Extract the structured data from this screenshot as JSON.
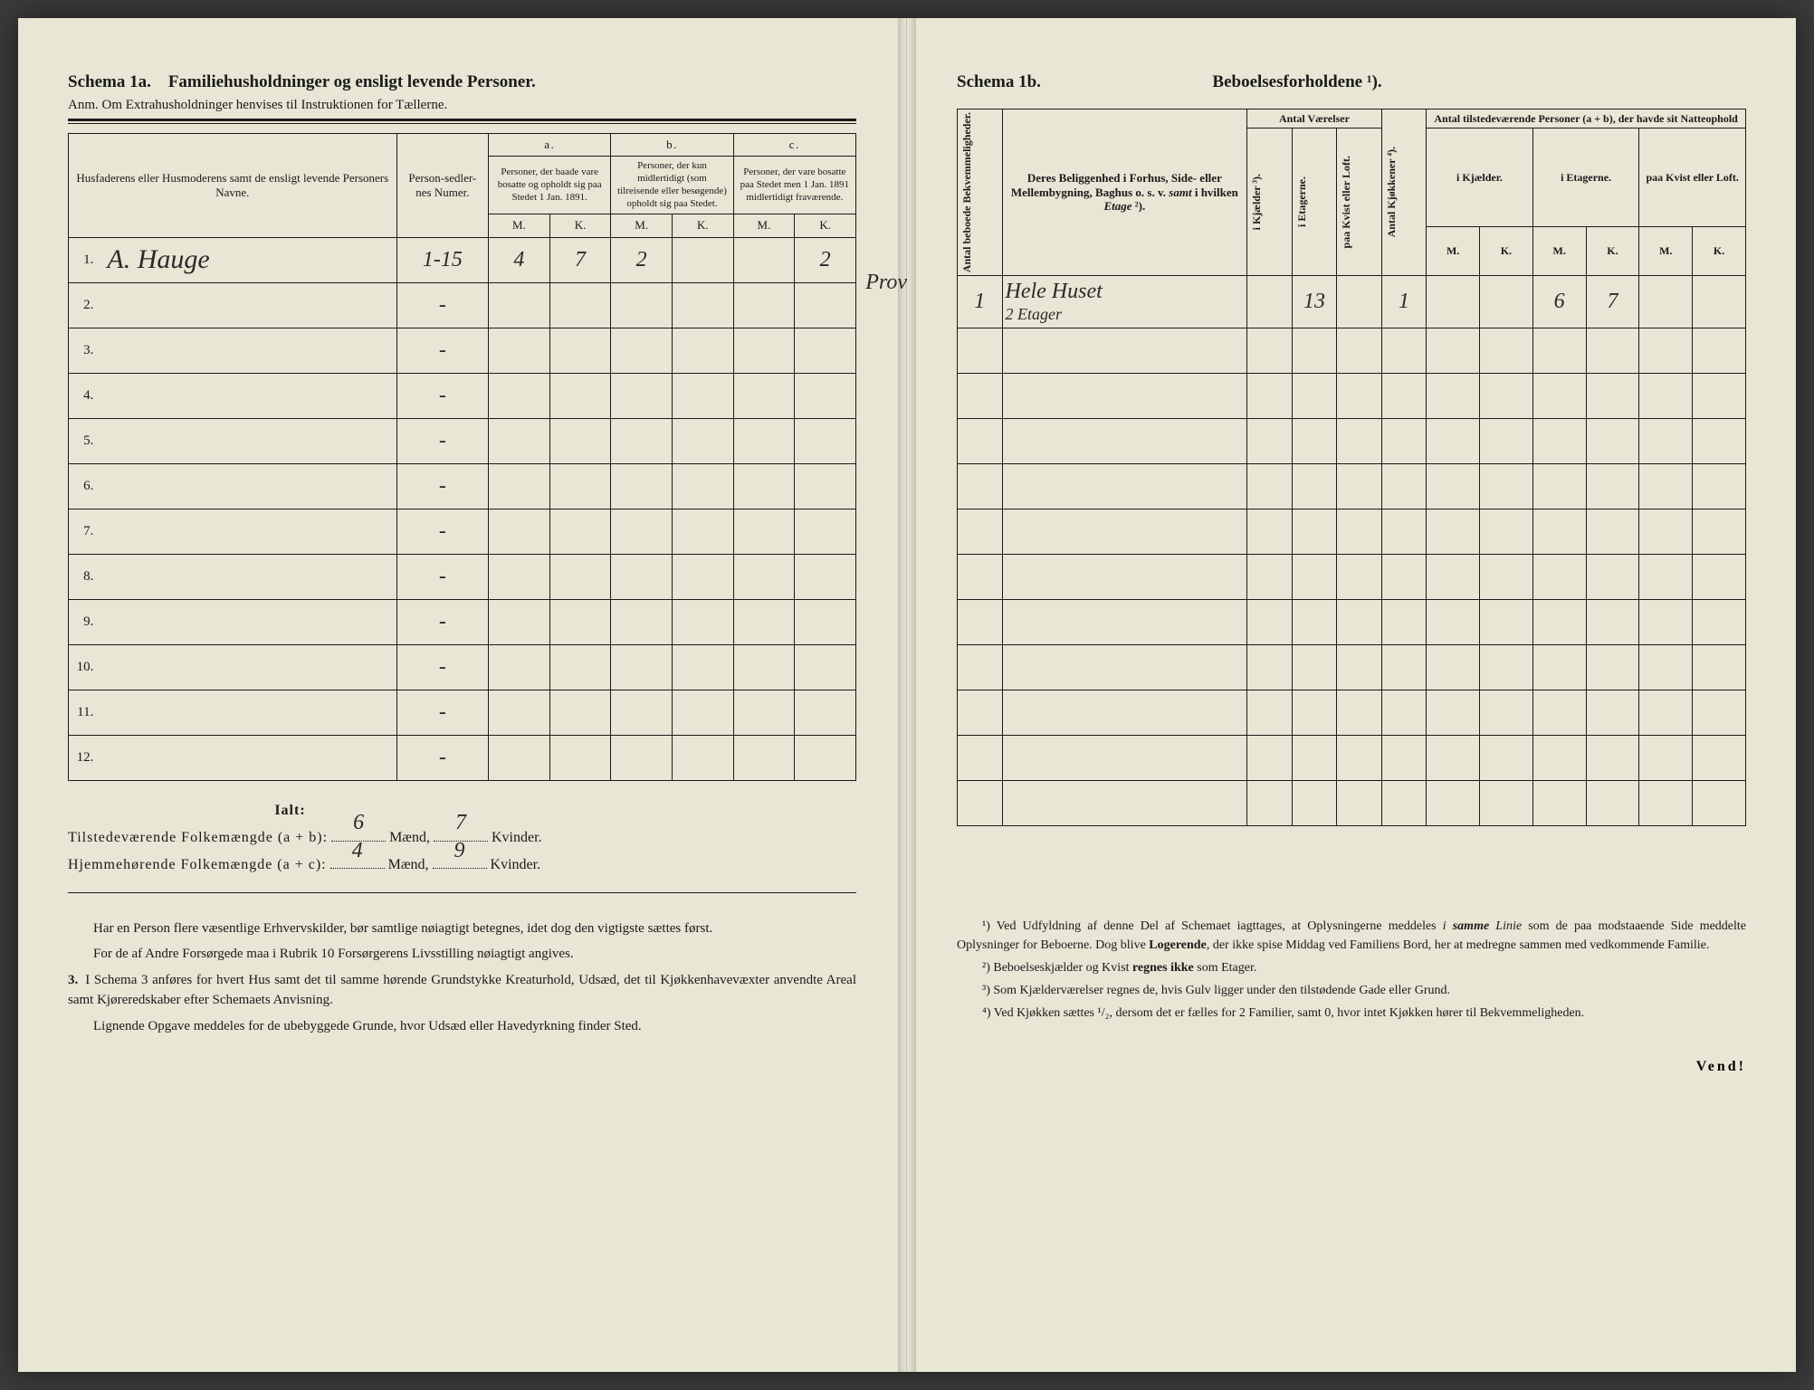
{
  "left": {
    "schemaLabel": "Schema 1a.",
    "schemaTitle": "Familiehusholdninger og ensligt levende Personer.",
    "anm": "Anm. Om Extrahusholdninger henvises til Instruktionen for Tællerne.",
    "headers": {
      "names": "Husfaderens eller Husmoderens samt de ensligt levende Personers Navne.",
      "person": "Person-sedler-nes Numer.",
      "a": "a.",
      "aDesc": "Personer, der baade vare bosatte og opholdt sig paa Stedet 1 Jan. 1891.",
      "b": "b.",
      "bDesc": "Personer, der kun midlertidigt (som tilreisende eller besøgende) opholdt sig paa Stedet.",
      "c": "c.",
      "cDesc": "Personer, der vare bosatte paa Stedet men 1 Jan. 1891 midlertidigt fraværende.",
      "M": "M.",
      "K": "K."
    },
    "rows": [
      {
        "n": "1.",
        "name": "A. Hauge",
        "person": "1-15",
        "aM": "4",
        "aK": "7",
        "bM": "2",
        "bK": "",
        "cM": "",
        "cK": "2",
        "note": "Provst."
      },
      {
        "n": "2.",
        "name": "",
        "person": "-",
        "aM": "",
        "aK": "",
        "bM": "",
        "bK": "",
        "cM": "",
        "cK": ""
      },
      {
        "n": "3.",
        "name": "",
        "person": "-",
        "aM": "",
        "aK": "",
        "bM": "",
        "bK": "",
        "cM": "",
        "cK": ""
      },
      {
        "n": "4.",
        "name": "",
        "person": "-",
        "aM": "",
        "aK": "",
        "bM": "",
        "bK": "",
        "cM": "",
        "cK": ""
      },
      {
        "n": "5.",
        "name": "",
        "person": "-",
        "aM": "",
        "aK": "",
        "bM": "",
        "bK": "",
        "cM": "",
        "cK": ""
      },
      {
        "n": "6.",
        "name": "",
        "person": "-",
        "aM": "",
        "aK": "",
        "bM": "",
        "bK": "",
        "cM": "",
        "cK": ""
      },
      {
        "n": "7.",
        "name": "",
        "person": "-",
        "aM": "",
        "aK": "",
        "bM": "",
        "bK": "",
        "cM": "",
        "cK": ""
      },
      {
        "n": "8.",
        "name": "",
        "person": "-",
        "aM": "",
        "aK": "",
        "bM": "",
        "bK": "",
        "cM": "",
        "cK": ""
      },
      {
        "n": "9.",
        "name": "",
        "person": "-",
        "aM": "",
        "aK": "",
        "bM": "",
        "bK": "",
        "cM": "",
        "cK": ""
      },
      {
        "n": "10.",
        "name": "",
        "person": "-",
        "aM": "",
        "aK": "",
        "bM": "",
        "bK": "",
        "cM": "",
        "cK": ""
      },
      {
        "n": "11.",
        "name": "",
        "person": "-",
        "aM": "",
        "aK": "",
        "bM": "",
        "bK": "",
        "cM": "",
        "cK": ""
      },
      {
        "n": "12.",
        "name": "",
        "person": "-",
        "aM": "",
        "aK": "",
        "bM": "",
        "bK": "",
        "cM": "",
        "cK": ""
      }
    ],
    "ialt": "Ialt:",
    "tilstede": "Tilstedeværende Folkemængde (a + b):",
    "hjemme": "Hjemmehørende Folkemængde (a + c):",
    "maend": "Mænd,",
    "kvinder": "Kvinder.",
    "tilM": "6",
    "tilK": "7",
    "hjM": "4",
    "hjK": "9",
    "p1": "Har en Person flere væsentlige Erhvervskilder, bør samtlige nøiagtigt betegnes, idet dog den vigtigste sættes først.",
    "p2": "For de af Andre Forsørgede maa i Rubrik 10 Forsørgerens Livsstilling nøiagtigt angives.",
    "p3n": "3.",
    "p3": "I Schema 3 anføres for hvert Hus samt det til samme hørende Grundstykke Kreaturhold, Udsæd, det til Kjøkkenhavevæxter anvendte Areal samt Kjøreredskaber efter Schemaets Anvisning.",
    "p4": "Lignende Opgave meddeles for de ubebyggede Grunde, hvor Udsæd eller Havedyrkning finder Sted."
  },
  "right": {
    "schemaLabel": "Schema 1b.",
    "schemaTitle": "Beboelsesforholdene ¹).",
    "headers": {
      "col1": "Antal beboede Bekvemmeligheder.",
      "col2": "Deres Beliggenhed i Forhus, Side- eller Mellembygning, Baghus o. s. v. samt i hvilken Etage ²).",
      "ant": "Antal Værelser",
      "kjael": "i Kjælder ³).",
      "etag": "i Etagerne.",
      "kvist": "paa Kvist eller Loft.",
      "kjok": "Antal Kjøkkener ⁴).",
      "pers": "Antal tilstedeværende Personer (a + b), der havde sit Natteophold",
      "ikj": "i Kjælder.",
      "iet": "i Etagerne.",
      "pkv": "paa Kvist eller Loft.",
      "M": "M.",
      "K": "K."
    },
    "row1": {
      "num": "1",
      "loc": "Hele Huset",
      "loc2": "2 Etager",
      "kj": "",
      "et": "13",
      "kv": "",
      "kk": "1",
      "kjM": "",
      "kjK": "",
      "etM": "6",
      "etK": "7",
      "kvM": "",
      "kvK": ""
    },
    "fn1": "¹) Ved Udfyldning af denne Del af Schemaet iagttages, at Oplysningerne meddeles i samme Linie som de paa modstaaende Side meddelte Oplysninger for Beboerne. Dog blive Logerende, der ikke spise Middag ved Familiens Bord, her at medregne sammen med vedkommende Familie.",
    "fn2": "²) Beboelseskjælder og Kvist regnes ikke som Etager.",
    "fn3": "³) Som Kjælderværelser regnes de, hvis Gulv ligger under den tilstødende Gade eller Grund.",
    "fn4": "⁴) Ved Kjøkken sættes ¹/₂, dersom det er fælles for 2 Familier, samt 0, hvor intet Kjøkken hører til Bekvemmeligheden.",
    "vend": "Vend!"
  }
}
